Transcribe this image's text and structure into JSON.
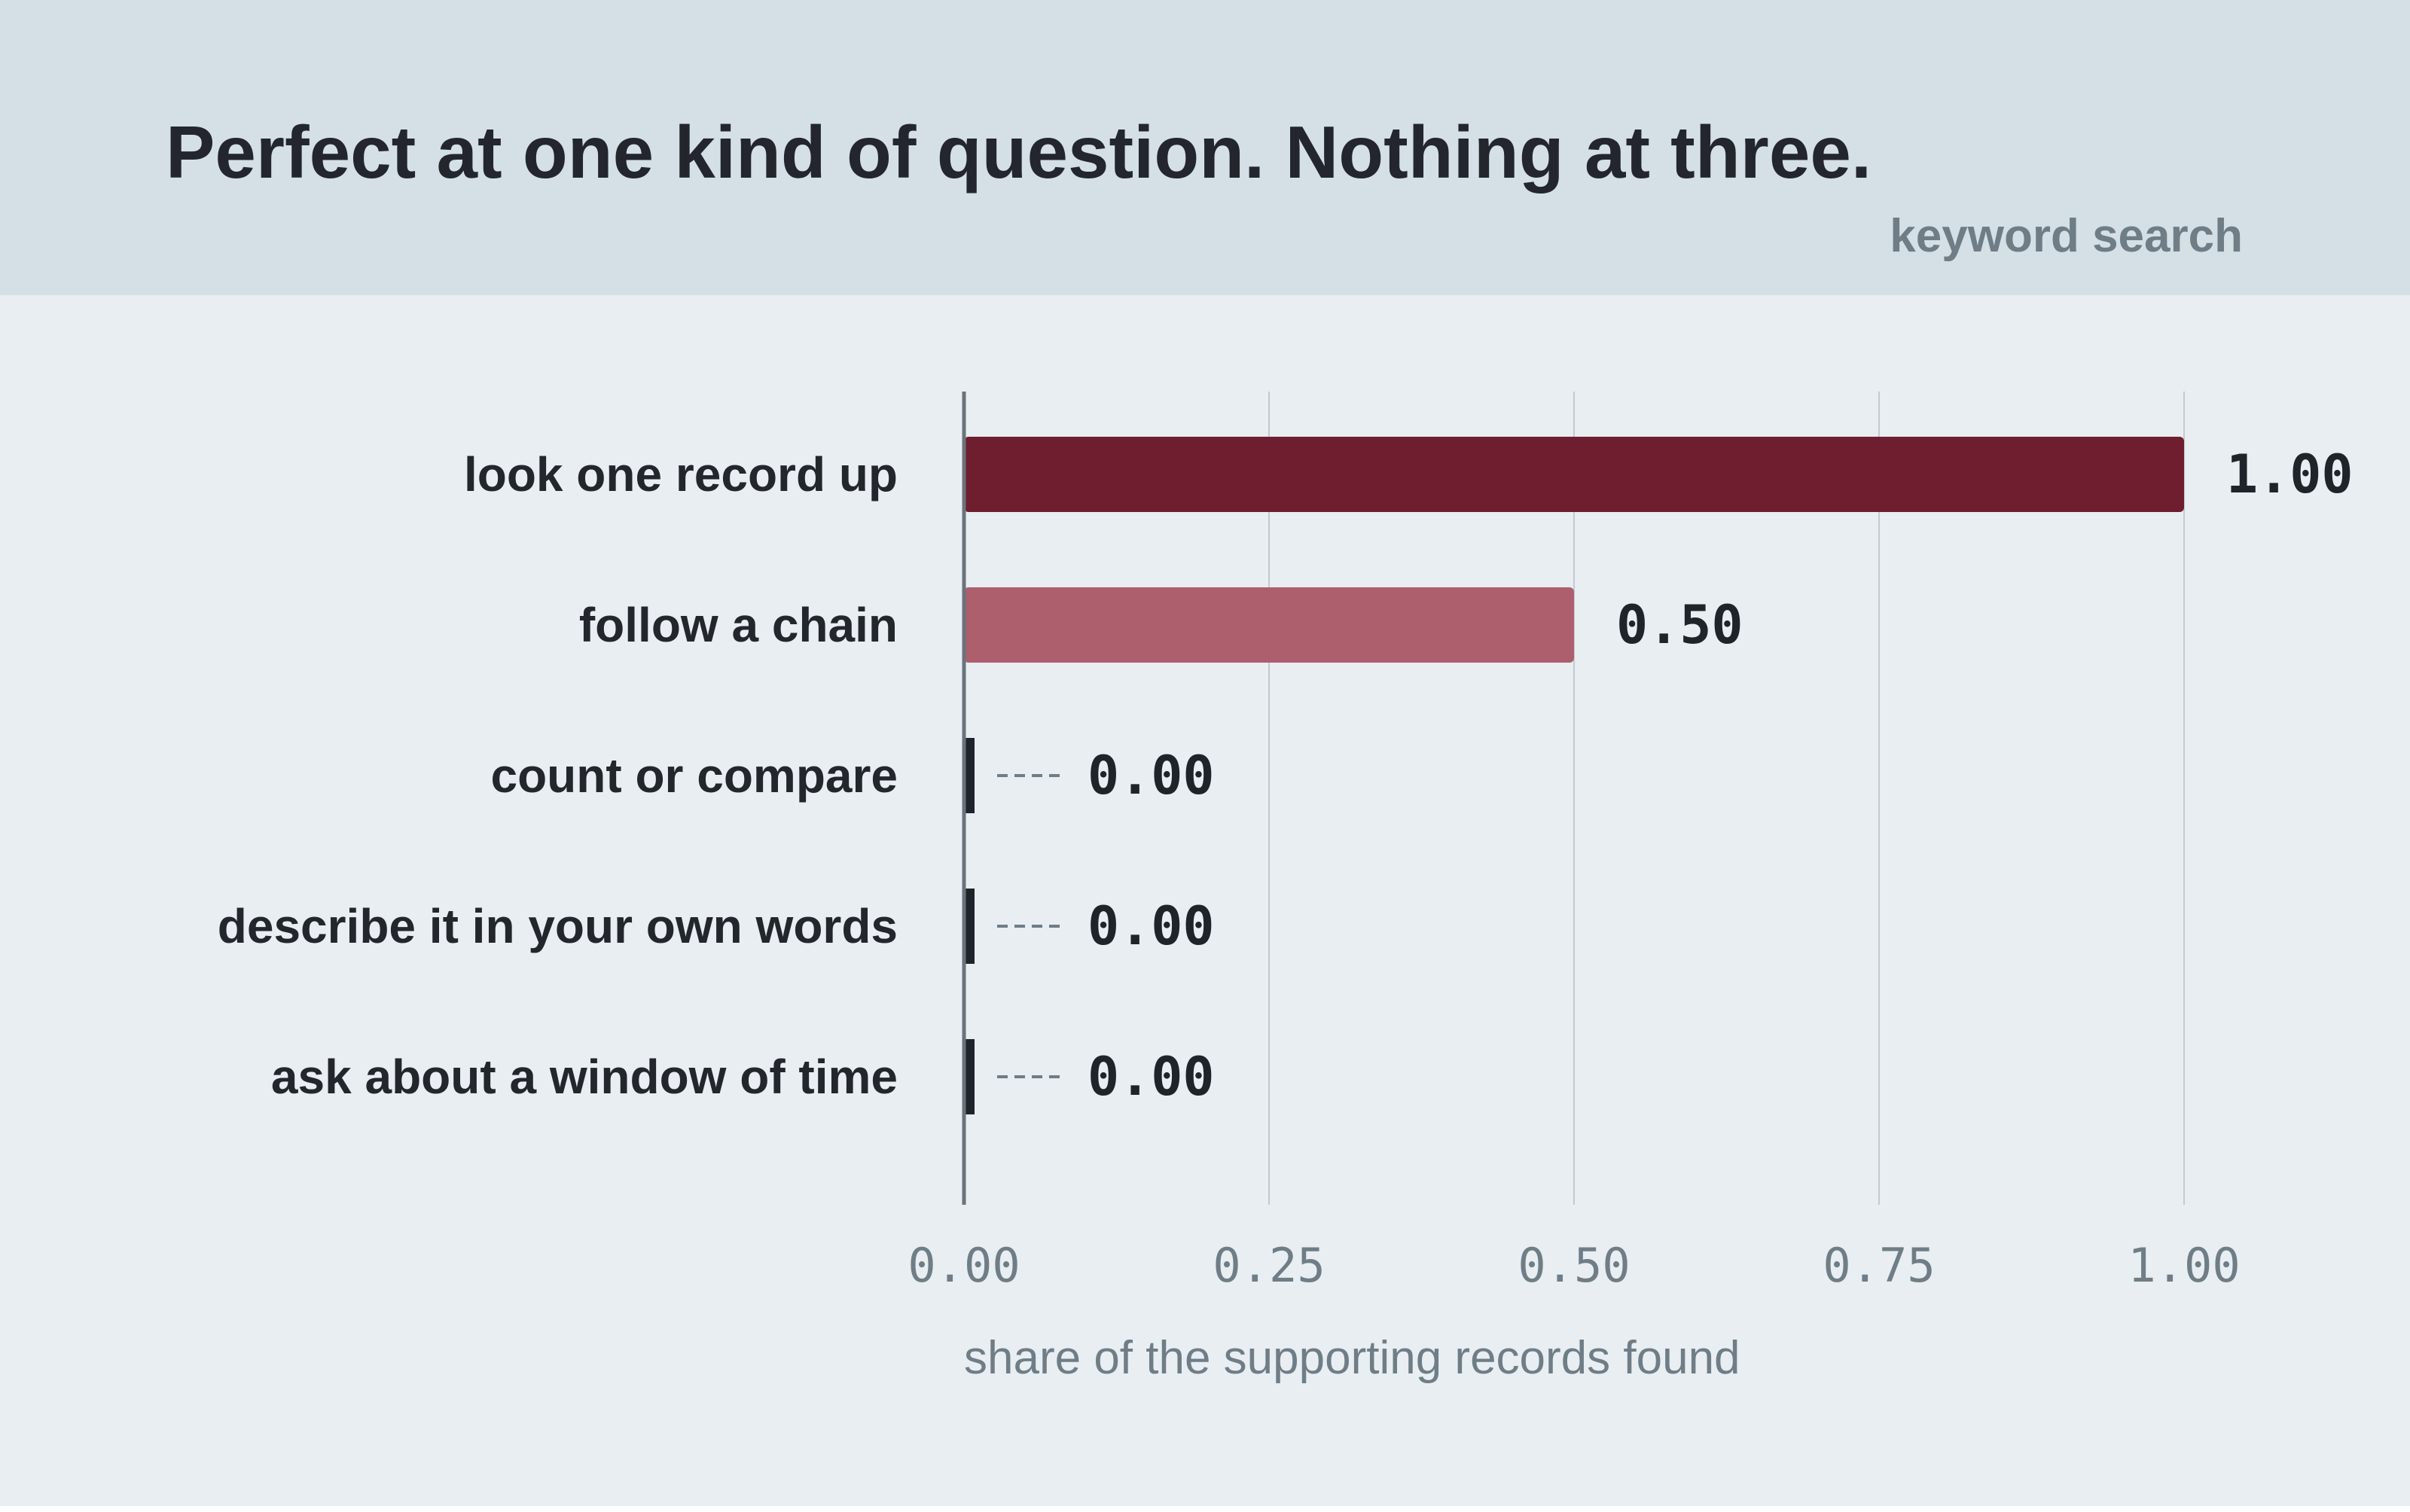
{
  "header": {
    "title": "Perfect at one kind of question. Nothing at three.",
    "subtitle": "keyword search"
  },
  "colors": {
    "primary_bar": "#6e1e2f",
    "secondary_bar": "#ad5f6d",
    "zero_marker": "#1f242b",
    "header_bg": "#d5e0e6",
    "plot_bg": "#e8eef1"
  },
  "chart_data": {
    "type": "bar",
    "orientation": "horizontal",
    "categories": [
      "look one record up",
      "follow a chain",
      "count or compare",
      "describe it in your own words",
      "ask about a window of time"
    ],
    "values": [
      1.0,
      0.5,
      0.0,
      0.0,
      0.0
    ],
    "value_labels": [
      "1.00",
      "0.50",
      "0.00",
      "0.00",
      "0.00"
    ],
    "xlabel": "share of the supporting records found",
    "xlim": [
      0,
      1
    ],
    "xticks": [
      0,
      0.25,
      0.5,
      0.75,
      1.0
    ],
    "xtick_labels": [
      "0.00",
      "0.25",
      "0.50",
      "0.75",
      "1.00"
    ],
    "grid": "vertical"
  }
}
